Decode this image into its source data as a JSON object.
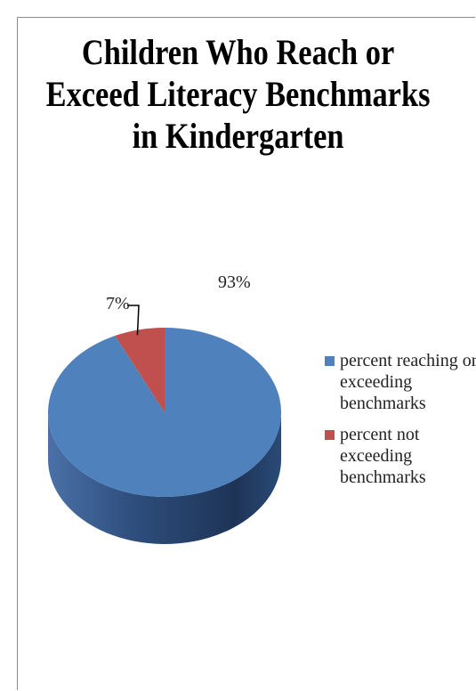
{
  "chart_data": {
    "type": "pie",
    "title": [
      "Children Who Reach or",
      "Exceed Literacy Benchmarks",
      "in Kindergarten"
    ],
    "slices": [
      {
        "label": "percent reaching or exceeding benchmarks",
        "value": 93,
        "data_label": "93%",
        "color": "#4f81bd"
      },
      {
        "label": "percent not exceeding benchmarks",
        "value": 7,
        "data_label": "7%",
        "color": "#c0504d"
      }
    ],
    "legend_position": "right",
    "style": "3d"
  }
}
